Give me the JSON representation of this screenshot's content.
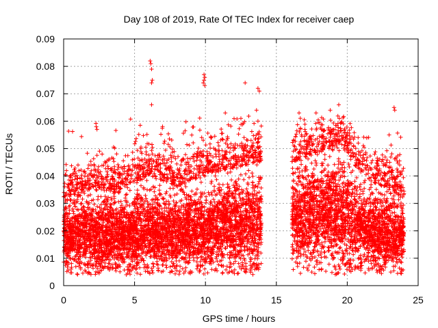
{
  "chart_data": {
    "type": "scatter",
    "title": "Day 108 of 2019, Rate Of TEC Index for receiver caep",
    "xlabel": "GPS time / hours",
    "ylabel": "ROTI / TECUs",
    "xlim": [
      0,
      25
    ],
    "ylim": [
      0,
      0.09
    ],
    "xticks": [
      0,
      5,
      10,
      15,
      20,
      25
    ],
    "xtick_labels": [
      "0",
      "5",
      "10",
      "15",
      "20",
      "25"
    ],
    "yticks": [
      0,
      0.01,
      0.02,
      0.03,
      0.04,
      0.05,
      0.06,
      0.07,
      0.08,
      0.09
    ],
    "ytick_labels": [
      "0",
      "0.01",
      "0.02",
      "0.03",
      "0.04",
      "0.05",
      "0.06",
      "0.07",
      "0.08",
      "0.09"
    ],
    "grid": true,
    "marker": "+",
    "marker_color": "#ff0000",
    "series": [
      {
        "name": "ROTI",
        "segments": [
          {
            "start": 0.0,
            "end": 13.95
          },
          {
            "start": 16.1,
            "end": 24.0
          }
        ],
        "envelope": [
          {
            "x": 0,
            "low": 0.007,
            "mid": 0.018,
            "high": 0.03
          },
          {
            "x": 2,
            "low": 0.007,
            "mid": 0.019,
            "high": 0.035
          },
          {
            "x": 4,
            "low": 0.007,
            "mid": 0.018,
            "high": 0.034
          },
          {
            "x": 6,
            "low": 0.008,
            "mid": 0.02,
            "high": 0.04
          },
          {
            "x": 8,
            "low": 0.008,
            "mid": 0.019,
            "high": 0.036
          },
          {
            "x": 10,
            "low": 0.009,
            "mid": 0.021,
            "high": 0.04
          },
          {
            "x": 12,
            "low": 0.009,
            "mid": 0.022,
            "high": 0.043
          },
          {
            "x": 13.95,
            "low": 0.01,
            "mid": 0.023,
            "high": 0.045
          },
          {
            "x": 16.1,
            "low": 0.011,
            "mid": 0.025,
            "high": 0.045
          },
          {
            "x": 18,
            "low": 0.01,
            "mid": 0.026,
            "high": 0.048
          },
          {
            "x": 19.5,
            "low": 0.01,
            "mid": 0.027,
            "high": 0.052
          },
          {
            "x": 21,
            "low": 0.008,
            "mid": 0.021,
            "high": 0.04
          },
          {
            "x": 24,
            "low": 0.007,
            "mid": 0.018,
            "high": 0.032
          }
        ],
        "outliers": [
          {
            "x": 6.1,
            "y": 0.082
          },
          {
            "x": 6.15,
            "y": 0.081
          },
          {
            "x": 6.2,
            "y": 0.079
          },
          {
            "x": 6.25,
            "y": 0.075
          },
          {
            "x": 6.2,
            "y": 0.074
          },
          {
            "x": 6.2,
            "y": 0.066
          },
          {
            "x": 9.9,
            "y": 0.077
          },
          {
            "x": 9.95,
            "y": 0.076
          },
          {
            "x": 9.9,
            "y": 0.075
          },
          {
            "x": 9.85,
            "y": 0.074
          },
          {
            "x": 9.95,
            "y": 0.073
          },
          {
            "x": 12.8,
            "y": 0.074
          },
          {
            "x": 13.7,
            "y": 0.072
          },
          {
            "x": 13.8,
            "y": 0.071
          },
          {
            "x": 13.6,
            "y": 0.064
          },
          {
            "x": 13.7,
            "y": 0.06
          },
          {
            "x": 2.3,
            "y": 0.058
          },
          {
            "x": 2.35,
            "y": 0.057
          },
          {
            "x": 19.4,
            "y": 0.066
          },
          {
            "x": 18.8,
            "y": 0.064
          },
          {
            "x": 17.8,
            "y": 0.063
          },
          {
            "x": 16.6,
            "y": 0.063
          },
          {
            "x": 23.3,
            "y": 0.065
          },
          {
            "x": 23.35,
            "y": 0.064
          },
          {
            "x": 11.4,
            "y": 0.063
          },
          {
            "x": 12.5,
            "y": 0.061
          }
        ]
      }
    ]
  }
}
